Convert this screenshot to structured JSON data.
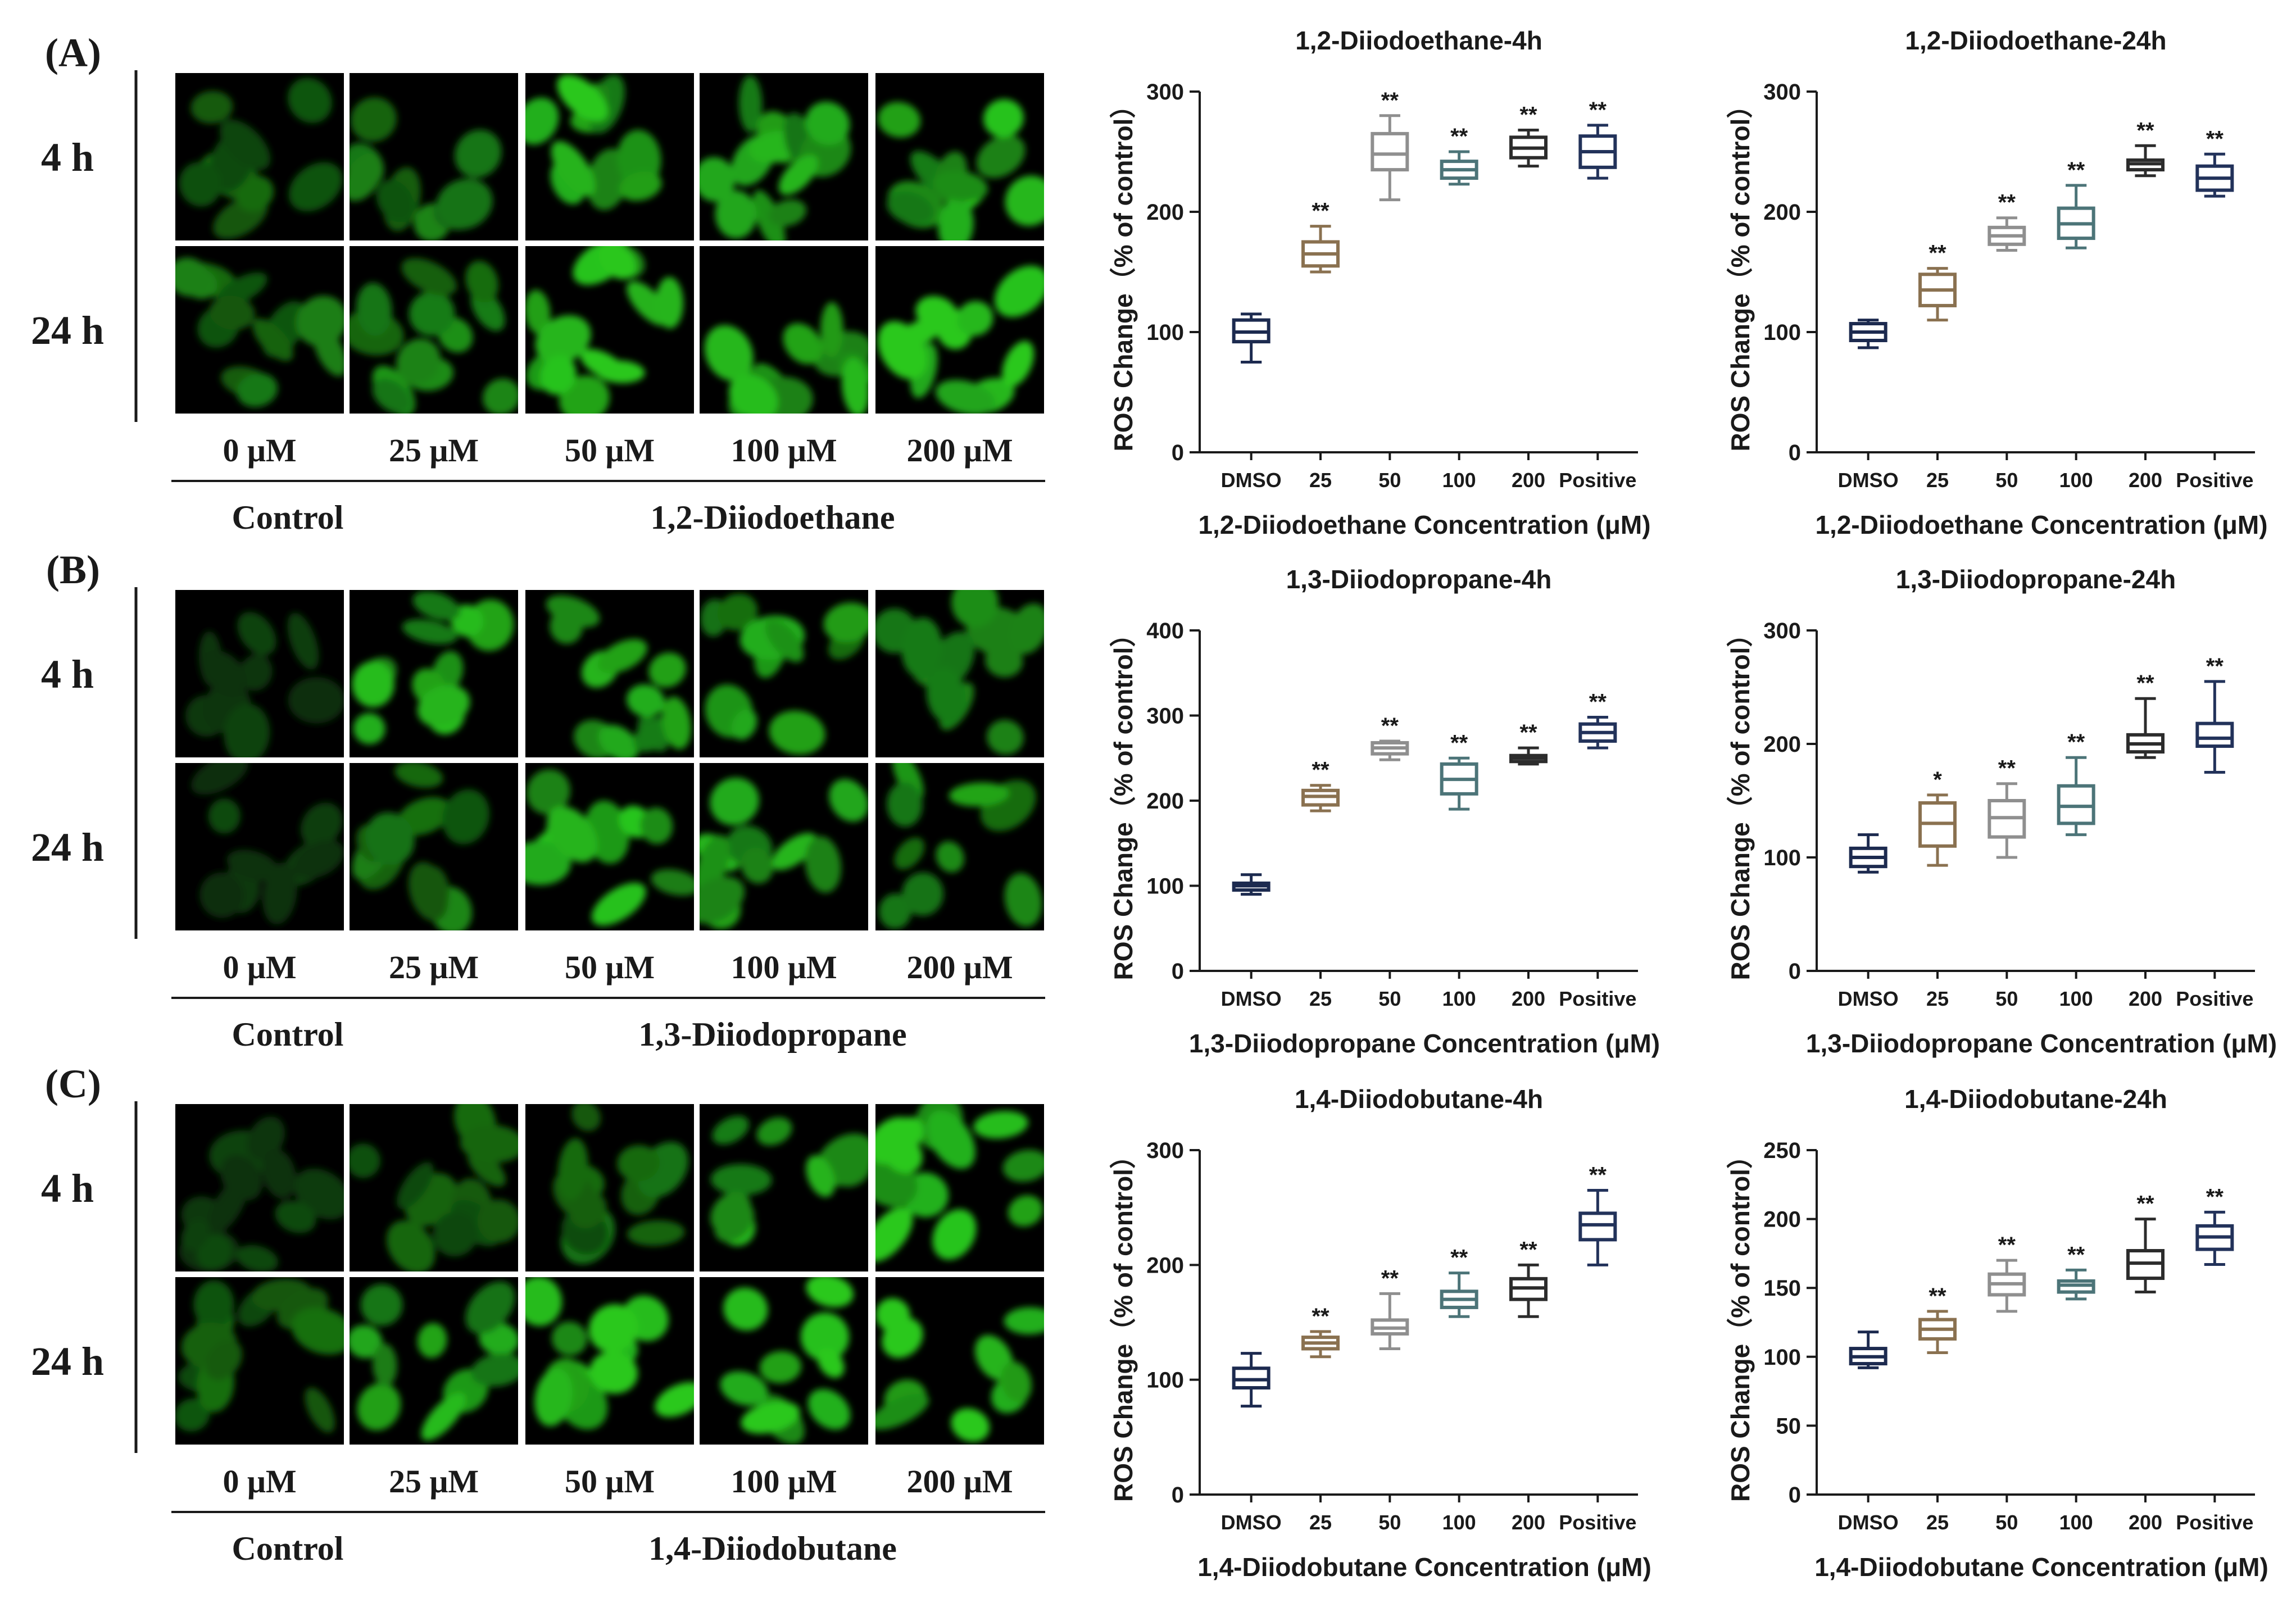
{
  "figure": {
    "cell_color": "#29c81f",
    "axis_color": "#1a1a1a",
    "panels": [
      {
        "letter": "(A)",
        "rows": [
          "4 h",
          "24 h"
        ],
        "doses": [
          "0 μM",
          "25 μM",
          "50 μM",
          "100 μM",
          "200 μM"
        ],
        "control_label": "Control",
        "compound_label": "1,2-Diiodoethane",
        "brightness": [
          [
            0.45,
            0.55,
            0.8,
            0.75,
            0.8
          ],
          [
            0.55,
            0.6,
            0.85,
            0.85,
            0.95
          ]
        ]
      },
      {
        "letter": "(B)",
        "rows": [
          "4 h",
          "24 h"
        ],
        "doses": [
          "0 μM",
          "25 μM",
          "50 μM",
          "100 μM",
          "200 μM"
        ],
        "control_label": "Control",
        "compound_label": "1,3-Diiodopropane",
        "brightness": [
          [
            0.3,
            0.8,
            0.75,
            0.7,
            0.6
          ],
          [
            0.3,
            0.55,
            0.8,
            0.75,
            0.7
          ]
        ]
      },
      {
        "letter": "(C)",
        "rows": [
          "4 h",
          "24 h"
        ],
        "doses": [
          "0 μM",
          "25 μM",
          "50 μM",
          "100 μM",
          "200 μM"
        ],
        "control_label": "Control",
        "compound_label": "1,4-Diiodobutane",
        "brightness": [
          [
            0.3,
            0.45,
            0.5,
            0.75,
            0.9
          ],
          [
            0.45,
            0.75,
            0.9,
            0.85,
            0.9
          ]
        ]
      }
    ]
  },
  "chart_data": [
    {
      "type": "boxplot",
      "title": "1,2-Diiodoethane-4h",
      "xlabel": "1,2-Diiodoethane Concentration (μM)",
      "ylabel": "ROS Change（% of control）",
      "categories": [
        "DMSO",
        "25",
        "50",
        "100",
        "200",
        "Positive"
      ],
      "ylim": [
        0,
        300
      ],
      "yticks": [
        0,
        100,
        200,
        300
      ],
      "boxes": [
        {
          "min": 75,
          "q1": 92,
          "median": 100,
          "q3": 110,
          "max": 115,
          "sig": ""
        },
        {
          "min": 150,
          "q1": 155,
          "median": 165,
          "q3": 175,
          "max": 188,
          "sig": "**"
        },
        {
          "min": 210,
          "q1": 235,
          "median": 248,
          "q3": 265,
          "max": 280,
          "sig": "**"
        },
        {
          "min": 223,
          "q1": 228,
          "median": 235,
          "q3": 242,
          "max": 250,
          "sig": "**"
        },
        {
          "min": 238,
          "q1": 245,
          "median": 253,
          "q3": 262,
          "max": 268,
          "sig": "**"
        },
        {
          "min": 228,
          "q1": 237,
          "median": 250,
          "q3": 263,
          "max": 272,
          "sig": "**"
        }
      ]
    },
    {
      "type": "boxplot",
      "title": "1,2-Diiodoethane-24h",
      "xlabel": "1,2-Diiodoethane Concentration (μM)",
      "ylabel": "ROS Change（% of control）",
      "categories": [
        "DMSO",
        "25",
        "50",
        "100",
        "200",
        "Positive"
      ],
      "ylim": [
        0,
        300
      ],
      "yticks": [
        0,
        100,
        200,
        300
      ],
      "boxes": [
        {
          "min": 87,
          "q1": 93,
          "median": 100,
          "q3": 107,
          "max": 110,
          "sig": ""
        },
        {
          "min": 110,
          "q1": 122,
          "median": 135,
          "q3": 148,
          "max": 153,
          "sig": "**"
        },
        {
          "min": 168,
          "q1": 173,
          "median": 180,
          "q3": 187,
          "max": 195,
          "sig": "**"
        },
        {
          "min": 170,
          "q1": 178,
          "median": 190,
          "q3": 203,
          "max": 222,
          "sig": "**"
        },
        {
          "min": 230,
          "q1": 235,
          "median": 240,
          "q3": 243,
          "max": 255,
          "sig": "**"
        },
        {
          "min": 213,
          "q1": 218,
          "median": 228,
          "q3": 238,
          "max": 248,
          "sig": "**"
        }
      ]
    },
    {
      "type": "boxplot",
      "title": "1,3-Diiodopropane-4h",
      "xlabel": "1,3-Diiodopropane Concentration (μM)",
      "ylabel": "ROS Change（% of control）",
      "categories": [
        "DMSO",
        "25",
        "50",
        "100",
        "200",
        "Positive"
      ],
      "ylim": [
        0,
        400
      ],
      "yticks": [
        0,
        100,
        200,
        300,
        400
      ],
      "boxes": [
        {
          "min": 90,
          "q1": 95,
          "median": 100,
          "q3": 103,
          "max": 113,
          "sig": ""
        },
        {
          "min": 188,
          "q1": 195,
          "median": 205,
          "q3": 212,
          "max": 218,
          "sig": "**"
        },
        {
          "min": 248,
          "q1": 255,
          "median": 262,
          "q3": 268,
          "max": 270,
          "sig": "**"
        },
        {
          "min": 190,
          "q1": 208,
          "median": 225,
          "q3": 243,
          "max": 250,
          "sig": "**"
        },
        {
          "min": 243,
          "q1": 246,
          "median": 250,
          "q3": 253,
          "max": 262,
          "sig": "**"
        },
        {
          "min": 262,
          "q1": 270,
          "median": 280,
          "q3": 290,
          "max": 298,
          "sig": "**"
        }
      ]
    },
    {
      "type": "boxplot",
      "title": "1,3-Diiodopropane-24h",
      "xlabel": "1,3-Diiodopropane Concentration (μM)",
      "ylabel": "ROS Change（% of control）",
      "categories": [
        "DMSO",
        "25",
        "50",
        "100",
        "200",
        "Positive"
      ],
      "ylim": [
        0,
        300
      ],
      "yticks": [
        0,
        100,
        200,
        300
      ],
      "boxes": [
        {
          "min": 87,
          "q1": 92,
          "median": 100,
          "q3": 108,
          "max": 120,
          "sig": ""
        },
        {
          "min": 93,
          "q1": 110,
          "median": 130,
          "q3": 148,
          "max": 155,
          "sig": "*"
        },
        {
          "min": 100,
          "q1": 118,
          "median": 135,
          "q3": 150,
          "max": 165,
          "sig": "**"
        },
        {
          "min": 120,
          "q1": 130,
          "median": 145,
          "q3": 163,
          "max": 188,
          "sig": "**"
        },
        {
          "min": 188,
          "q1": 193,
          "median": 200,
          "q3": 208,
          "max": 240,
          "sig": "**"
        },
        {
          "min": 175,
          "q1": 198,
          "median": 205,
          "q3": 218,
          "max": 255,
          "sig": "**"
        }
      ]
    },
    {
      "type": "boxplot",
      "title": "1,4-Diiodobutane-4h",
      "xlabel": "1,4-Diiodobutane Concentration (μM)",
      "ylabel": "ROS Change（% of control）",
      "categories": [
        "DMSO",
        "25",
        "50",
        "100",
        "200",
        "Positive"
      ],
      "ylim": [
        0,
        300
      ],
      "yticks": [
        0,
        100,
        200,
        300
      ],
      "boxes": [
        {
          "min": 77,
          "q1": 93,
          "median": 100,
          "q3": 110,
          "max": 123,
          "sig": ""
        },
        {
          "min": 120,
          "q1": 127,
          "median": 132,
          "q3": 137,
          "max": 142,
          "sig": "**"
        },
        {
          "min": 127,
          "q1": 140,
          "median": 145,
          "q3": 152,
          "max": 175,
          "sig": "**"
        },
        {
          "min": 155,
          "q1": 163,
          "median": 170,
          "q3": 177,
          "max": 193,
          "sig": "**"
        },
        {
          "min": 155,
          "q1": 170,
          "median": 180,
          "q3": 188,
          "max": 200,
          "sig": "**"
        },
        {
          "min": 200,
          "q1": 222,
          "median": 235,
          "q3": 245,
          "max": 265,
          "sig": "**"
        }
      ]
    },
    {
      "type": "boxplot",
      "title": "1,4-Diiodobutane-24h",
      "xlabel": "1,4-Diiodobutane Concentration (μM)",
      "ylabel": "ROS Change（% of control）",
      "categories": [
        "DMSO",
        "25",
        "50",
        "100",
        "200",
        "Positive"
      ],
      "ylim": [
        0,
        250
      ],
      "yticks": [
        0,
        50,
        100,
        150,
        200,
        250
      ],
      "boxes": [
        {
          "min": 92,
          "q1": 95,
          "median": 100,
          "q3": 106,
          "max": 118,
          "sig": ""
        },
        {
          "min": 103,
          "q1": 113,
          "median": 120,
          "q3": 127,
          "max": 133,
          "sig": "**"
        },
        {
          "min": 133,
          "q1": 145,
          "median": 153,
          "q3": 160,
          "max": 170,
          "sig": "**"
        },
        {
          "min": 142,
          "q1": 147,
          "median": 152,
          "q3": 155,
          "max": 163,
          "sig": "**"
        },
        {
          "min": 147,
          "q1": 157,
          "median": 168,
          "q3": 177,
          "max": 200,
          "sig": "**"
        },
        {
          "min": 167,
          "q1": 178,
          "median": 187,
          "q3": 195,
          "max": 205,
          "sig": "**"
        }
      ]
    }
  ],
  "box_colors": [
    "#1c2a4f",
    "#8a7150",
    "#8f8f8f",
    "#4c7478",
    "#2c2c2c",
    "#22325a"
  ]
}
